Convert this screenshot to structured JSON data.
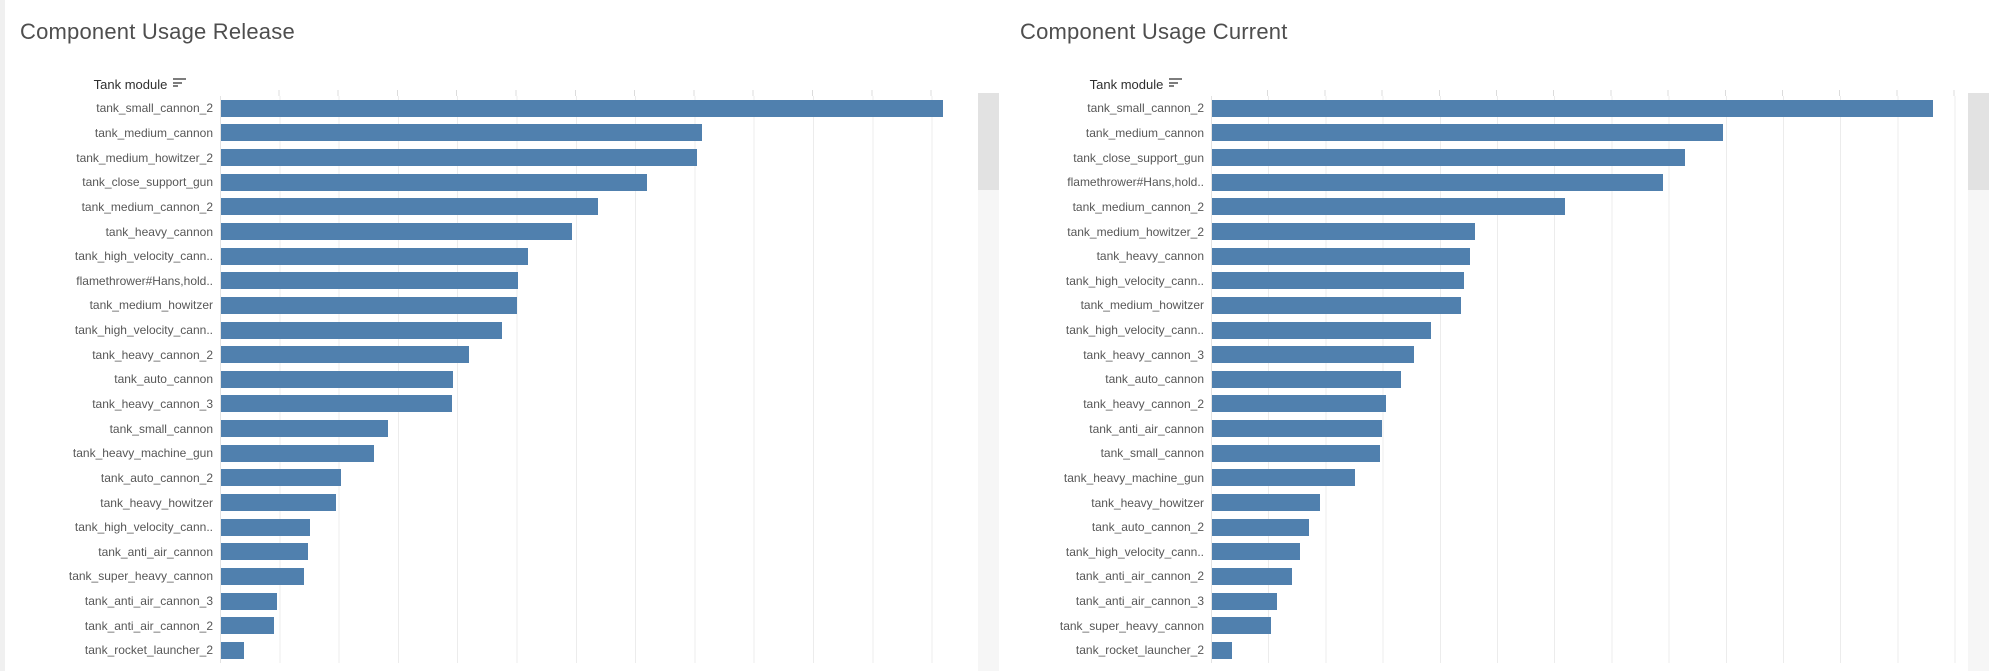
{
  "colors": {
    "bar_blue": "#5080AE",
    "gridline": "#ececec",
    "title_text": "#4e4e4e",
    "label_text": "#575757",
    "scroll_track": "#f6f6f6",
    "scroll_thumb": "#e2e2e2"
  },
  "sheets": [
    {
      "title": "Component Usage Release",
      "column_header": "Tank module",
      "sort_icon": "sort-descending-icon"
    },
    {
      "title": "Component Usage Current",
      "column_header": "Tank module",
      "sort_icon": "sort-descending-icon"
    }
  ],
  "chart_data": [
    {
      "type": "bar",
      "orientation": "horizontal",
      "title": "Component Usage Release",
      "category_axis_label": "Tank module",
      "sort": "descending",
      "value_axis_visible": false,
      "values_unit": "relative usage, % of longest bar (value axis cropped out of screenshot)",
      "xlim": [
        0,
        105
      ],
      "grid": "vertical light gray",
      "legend": "none",
      "bar_color": "#5080AE",
      "categories": [
        "tank_small_cannon_2",
        "tank_medium_cannon",
        "tank_medium_howitzer_2",
        "tank_close_support_gun",
        "tank_medium_cannon_2",
        "tank_heavy_cannon",
        "tank_high_velocity_cann..",
        "flamethrower#Hans,hold..",
        "tank_medium_howitzer",
        "tank_high_velocity_cann..",
        "tank_heavy_cannon_2",
        "tank_auto_cannon",
        "tank_heavy_cannon_3",
        "tank_small_cannon",
        "tank_heavy_machine_gun",
        "tank_auto_cannon_2",
        "tank_heavy_howitzer",
        "tank_high_velocity_cann..",
        "tank_anti_air_cannon",
        "tank_super_heavy_cannon",
        "tank_anti_air_cannon_3",
        "tank_anti_air_cannon_2",
        "tank_rocket_launcher_2"
      ],
      "values": [
        100,
        66.6,
        65.9,
        59.0,
        52.2,
        48.6,
        42.5,
        41.1,
        41.0,
        38.9,
        34.3,
        32.1,
        32.0,
        23.1,
        21.2,
        16.6,
        15.9,
        12.3,
        12.0,
        11.5,
        7.8,
        7.3,
        3.2
      ]
    },
    {
      "type": "bar",
      "orientation": "horizontal",
      "title": "Component Usage Current",
      "category_axis_label": "Tank module",
      "sort": "descending",
      "value_axis_visible": false,
      "values_unit": "relative usage, % of longest bar (value axis cropped out of screenshot)",
      "xlim": [
        0,
        105
      ],
      "grid": "vertical light gray",
      "legend": "none",
      "bar_color": "#5080AE",
      "categories": [
        "tank_small_cannon_2",
        "tank_medium_cannon",
        "tank_close_support_gun",
        "flamethrower#Hans,hold..",
        "tank_medium_cannon_2",
        "tank_medium_howitzer_2",
        "tank_heavy_cannon",
        "tank_high_velocity_cann..",
        "tank_medium_howitzer",
        "tank_high_velocity_cann..",
        "tank_heavy_cannon_3",
        "tank_auto_cannon",
        "tank_heavy_cannon_2",
        "tank_anti_air_cannon",
        "tank_small_cannon",
        "tank_heavy_machine_gun",
        "tank_heavy_howitzer",
        "tank_auto_cannon_2",
        "tank_high_velocity_cann..",
        "tank_anti_air_cannon_2",
        "tank_anti_air_cannon_3",
        "tank_super_heavy_cannon",
        "tank_rocket_launcher_2"
      ],
      "values": [
        100,
        70.9,
        65.6,
        62.6,
        49.0,
        36.5,
        35.8,
        35.0,
        34.5,
        30.4,
        28.0,
        26.2,
        24.1,
        23.6,
        23.3,
        19.8,
        15.0,
        13.5,
        12.2,
        11.1,
        9.0,
        8.2,
        2.8
      ]
    }
  ]
}
